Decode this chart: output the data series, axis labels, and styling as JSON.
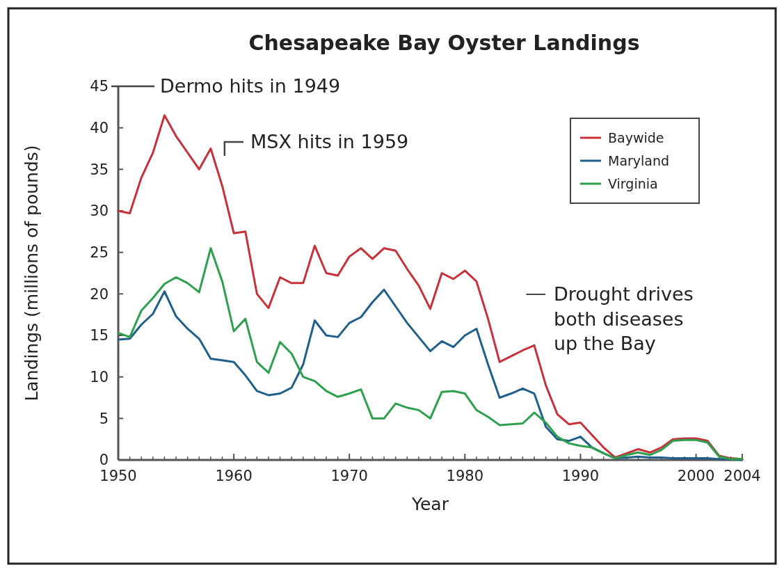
{
  "chart_data": {
    "type": "line",
    "title": "Chesapeake Bay Oyster Landings",
    "xlabel": "Year",
    "ylabel": "Landings (millions of pounds)",
    "x": [
      1950,
      1951,
      1952,
      1953,
      1954,
      1955,
      1956,
      1957,
      1958,
      1959,
      1960,
      1961,
      1962,
      1963,
      1964,
      1965,
      1966,
      1967,
      1968,
      1969,
      1970,
      1971,
      1972,
      1973,
      1974,
      1975,
      1976,
      1977,
      1978,
      1979,
      1980,
      1981,
      1982,
      1983,
      1984,
      1985,
      1986,
      1987,
      1988,
      1989,
      1990,
      1991,
      1992,
      1993,
      1994,
      1995,
      1996,
      1997,
      1998,
      1999,
      2000,
      2001,
      2002,
      2003,
      2004
    ],
    "series": [
      {
        "name": "Baywide",
        "color": "#c8303a",
        "values": [
          30,
          29.7,
          34,
          37,
          41.5,
          39,
          37,
          35,
          37.5,
          33,
          27.3,
          27.5,
          20,
          18.3,
          22,
          21.3,
          21.3,
          25.8,
          22.5,
          22.2,
          24.5,
          25.5,
          24.2,
          25.5,
          25.2,
          23,
          21,
          18.2,
          22.5,
          21.8,
          22.8,
          21.5,
          17,
          11.8,
          12.5,
          13.2,
          13.8,
          9,
          5.5,
          4.3,
          4.5,
          3,
          1.5,
          0.3,
          0.8,
          1.3,
          0.9,
          1.5,
          2.5,
          2.6,
          2.6,
          2.3,
          0.5,
          0.2,
          0.1
        ]
      },
      {
        "name": "Maryland",
        "color": "#1f5f8b",
        "values": [
          14.5,
          14.6,
          16.3,
          17.6,
          20.3,
          17.3,
          15.8,
          14.6,
          12.2,
          12,
          11.8,
          10.2,
          8.3,
          7.8,
          8,
          8.7,
          11.5,
          16.8,
          15,
          14.8,
          16.5,
          17.2,
          19,
          20.5,
          18.5,
          16.5,
          14.8,
          13.1,
          14.3,
          13.6,
          15,
          15.8,
          11.5,
          7.5,
          8,
          8.6,
          8,
          4,
          2.5,
          2.3,
          2.8,
          1.5,
          0.8,
          0.2,
          0.3,
          0.4,
          0.3,
          0.3,
          0.2,
          0.2,
          0.2,
          0.2,
          0.1,
          0.1,
          0
        ]
      },
      {
        "name": "Virginia",
        "color": "#2ca04c",
        "values": [
          15.3,
          14.8,
          18,
          19.5,
          21.2,
          22,
          21.3,
          20.2,
          25.5,
          21.5,
          15.5,
          17,
          11.8,
          10.5,
          14.2,
          12.8,
          10,
          9.5,
          8.3,
          7.6,
          8,
          8.5,
          5,
          5,
          6.8,
          6.3,
          6,
          5,
          8.2,
          8.3,
          8,
          6,
          5.2,
          4.2,
          4.3,
          4.4,
          5.7,
          4.5,
          2.8,
          2,
          1.7,
          1.5,
          0.8,
          0.2,
          0.6,
          0.9,
          0.6,
          1.2,
          2.3,
          2.4,
          2.4,
          2.1,
          0.4,
          0.1,
          0.1
        ]
      }
    ],
    "xlim": [
      1950,
      2004
    ],
    "xticks": [
      1950,
      1960,
      1970,
      1980,
      1990,
      2000,
      2004
    ],
    "ylim": [
      0,
      45
    ],
    "yticks": [
      0,
      5,
      10,
      15,
      20,
      25,
      30,
      35,
      40,
      45
    ],
    "grid": false,
    "legend": "top right",
    "marker": "none",
    "line_style": "solid",
    "annotations": [
      "Dermo hits in 1949",
      "MSX hits in 1959",
      "Drought drives\nboth diseases\nup the Bay"
    ]
  }
}
